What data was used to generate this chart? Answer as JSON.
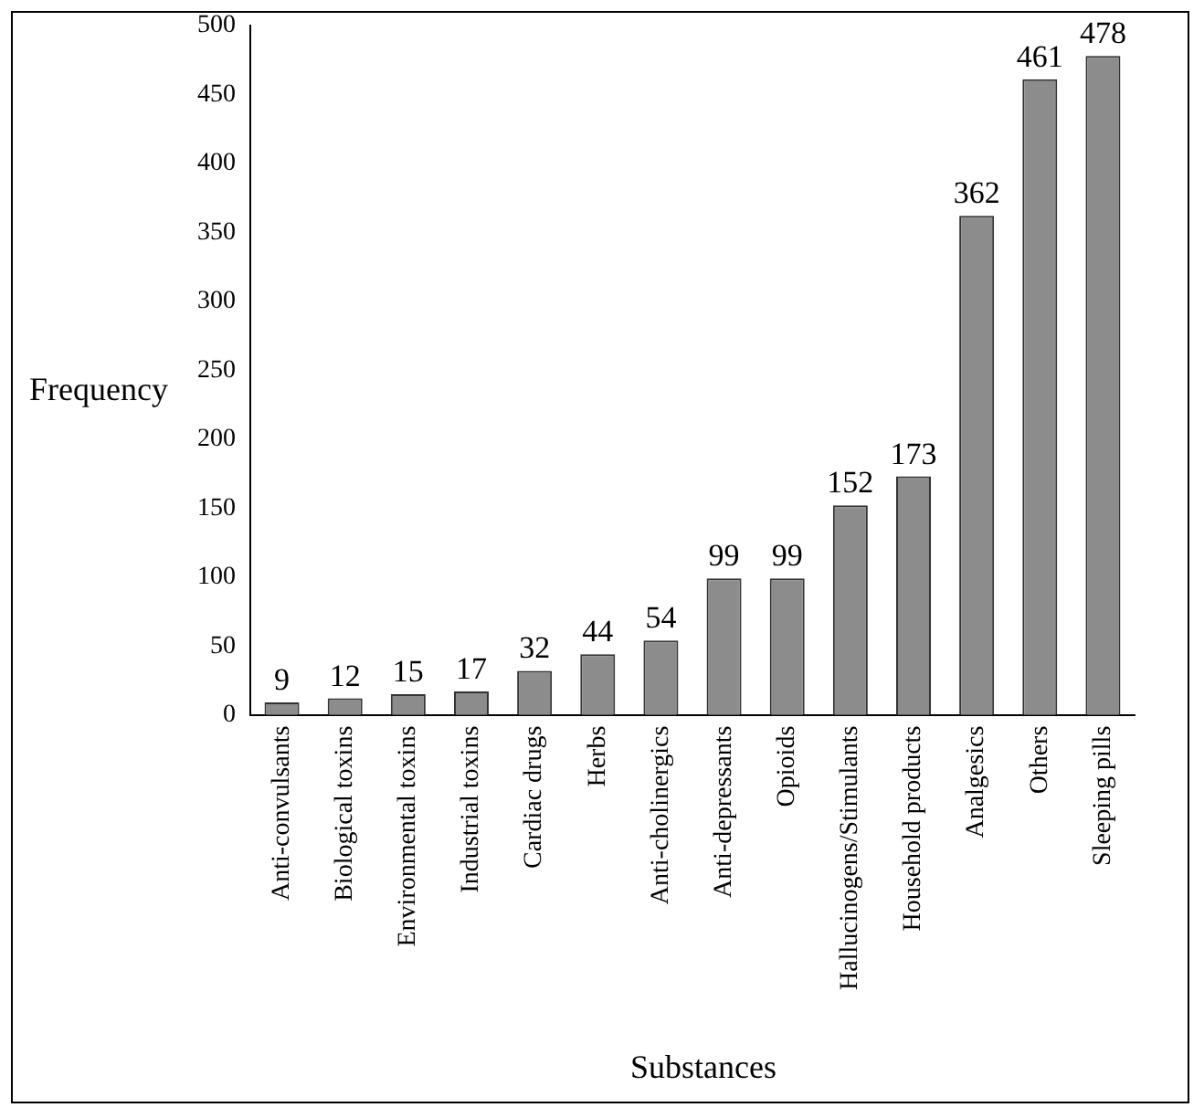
{
  "chart_data": {
    "type": "bar",
    "xlabel": "Substances",
    "ylabel": "Frequency",
    "categories": [
      "Anti-convulsants",
      "Biological toxins",
      "Environmental toxins",
      "Industrial toxins",
      "Cardiac drugs",
      "Herbs",
      "Anti-cholinergics",
      "Anti-depressants",
      "Opioids",
      "Hallucinogens/Stimulants",
      "Household products",
      "Analgesics",
      "Others",
      "Sleeping pills"
    ],
    "values": [
      9,
      12,
      15,
      17,
      32,
      44,
      54,
      99,
      99,
      152,
      173,
      362,
      461,
      478
    ],
    "color": "#8c8c8c",
    "ylim": [
      0,
      500
    ],
    "yticks": [
      0,
      50,
      100,
      150,
      200,
      250,
      300,
      350,
      400,
      450,
      500
    ],
    "grid": false,
    "legend": false,
    "data_labels": true
  }
}
